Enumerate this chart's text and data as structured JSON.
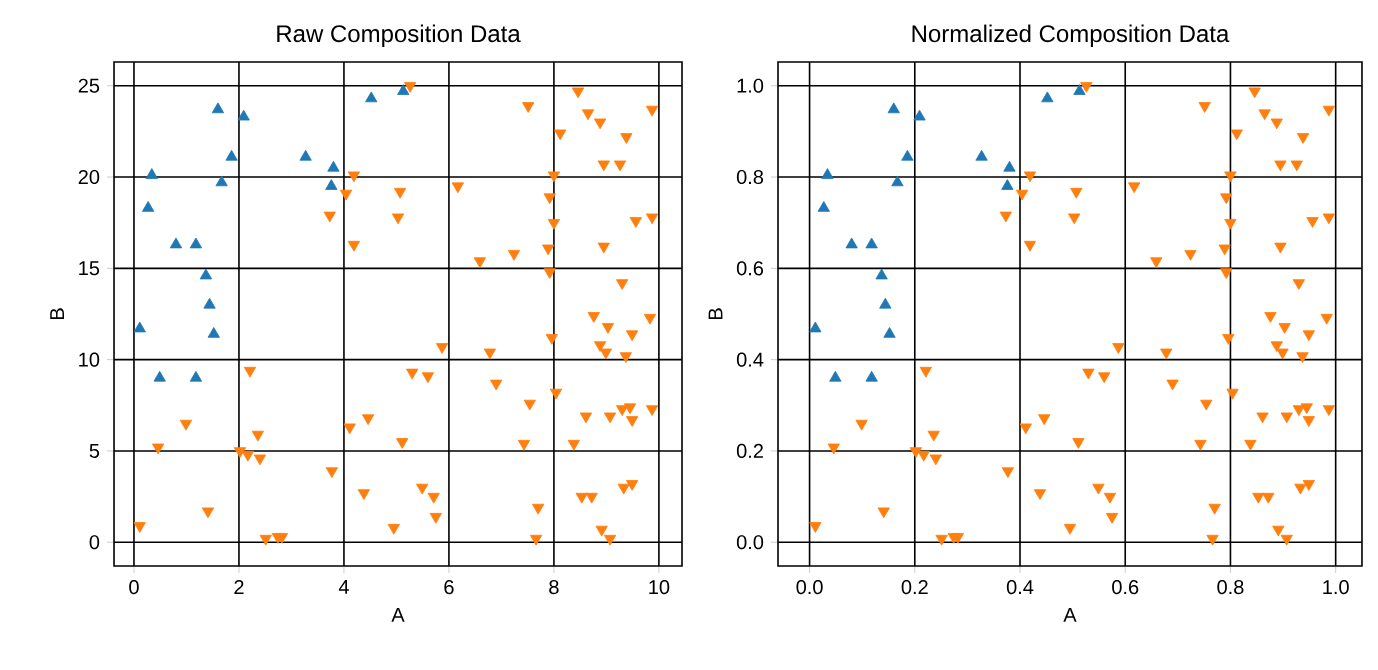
{
  "chart_data": [
    {
      "type": "scatter",
      "title": "Raw Composition Data",
      "xlabel": "A",
      "ylabel": "B",
      "xlim": [
        -0.38,
        10.44
      ],
      "ylim": [
        -1.3,
        26.3
      ],
      "xticks": [
        0,
        2,
        4,
        6,
        8,
        10
      ],
      "yticks": [
        0,
        5,
        10,
        15,
        20,
        25
      ],
      "grid": true,
      "series": [
        {
          "color": "#1f77b4",
          "marker": "triangle",
          "x": [
            1.6,
            2.09,
            4.52,
            1.86,
            3.27,
            3.8,
            0.34,
            1.67,
            3.76,
            0.27,
            0.8,
            1.18,
            1.37,
            1.44,
            0.11,
            1.52,
            0.49,
            1.18,
            5.13
          ],
          "values": [
            23.7,
            23.3,
            24.3,
            21.1,
            21.1,
            20.5,
            20.1,
            19.7,
            19.5,
            18.3,
            16.3,
            16.3,
            14.6,
            13.0,
            11.7,
            11.4,
            9.0,
            9.0,
            24.7
          ]
        },
        {
          "color": "#ff7f0e",
          "marker": "triangle_down",
          "x": [
            4.19,
            4.04,
            3.73,
            4.19,
            2.21,
            0.99,
            4.46,
            4.11,
            0.46,
            2.36,
            2.02,
            2.17,
            2.4,
            3.77,
            4.38,
            1.41,
            0.11,
            2.51,
            2.74,
            2.82,
            5.26,
            8.46,
            7.51,
            9.87,
            8.65,
            8.88,
            8.12,
            9.38,
            8.95,
            9.26,
            8.0,
            5.07,
            6.17,
            7.92,
            5.03,
            8.0,
            9.56,
            9.87,
            7.89,
            8.95,
            6.59,
            7.24,
            7.92,
            9.3,
            8.76,
            9.03,
            9.83,
            9.49,
            7.96,
            5.87,
            6.78,
            8.88,
            8.99,
            9.37,
            5.3,
            5.6,
            6.9,
            8.04,
            7.54,
            8.61,
            9.07,
            9.3,
            9.45,
            9.49,
            9.87,
            5.11,
            7.43,
            8.38,
            5.49,
            5.71,
            5.75,
            4.95,
            7.7,
            7.66,
            8.53,
            8.72,
            9.33,
            9.49,
            8.91,
            9.07
          ],
          "values": [
            20.1,
            19.1,
            17.9,
            16.3,
            9.4,
            6.5,
            6.8,
            6.3,
            5.2,
            5.9,
            5.0,
            4.8,
            4.6,
            3.9,
            2.7,
            1.7,
            0.9,
            0.2,
            0.3,
            0.3,
            25.0,
            24.7,
            23.9,
            23.7,
            23.5,
            23.0,
            22.4,
            22.2,
            20.7,
            20.7,
            20.1,
            19.2,
            19.5,
            18.9,
            17.8,
            17.5,
            17.6,
            17.8,
            16.1,
            16.2,
            15.4,
            15.8,
            14.8,
            14.2,
            12.4,
            11.8,
            12.3,
            11.4,
            11.2,
            10.7,
            10.4,
            10.8,
            10.4,
            10.2,
            9.3,
            9.1,
            8.7,
            8.2,
            7.6,
            6.9,
            6.9,
            7.3,
            7.4,
            6.7,
            7.3,
            5.5,
            5.4,
            5.4,
            3.0,
            2.5,
            1.4,
            0.8,
            1.9,
            0.2,
            2.5,
            2.5,
            3.0,
            3.2,
            0.7,
            0.2
          ]
        }
      ]
    },
    {
      "type": "scatter",
      "title": "Normalized Composition Data",
      "xlabel": "A",
      "ylabel": "B",
      "xlim": [
        -0.06,
        1.05
      ],
      "ylim": [
        -0.052,
        1.052
      ],
      "xticks": [
        {
          "value": 0,
          "label": "0.0"
        },
        {
          "value": 0.2,
          "label": "0.2"
        },
        {
          "value": 0.4,
          "label": "0.4"
        },
        {
          "value": 0.6,
          "label": "0.6"
        },
        {
          "value": 0.8,
          "label": "0.8"
        },
        {
          "value": 1,
          "label": "1.0"
        }
      ],
      "yticks": [
        {
          "value": 0,
          "label": "0.0"
        },
        {
          "value": 0.2,
          "label": "0.2"
        },
        {
          "value": 0.4,
          "label": "0.4"
        },
        {
          "value": 0.6,
          "label": "0.6"
        },
        {
          "value": 0.8,
          "label": "0.8"
        },
        {
          "value": 1,
          "label": "1.0"
        }
      ],
      "grid": true,
      "series": [
        {
          "color": "#1f77b4",
          "marker": "triangle",
          "x": [
            0.16,
            0.209,
            0.452,
            0.186,
            0.327,
            0.38,
            0.034,
            0.167,
            0.376,
            0.027,
            0.08,
            0.118,
            0.137,
            0.144,
            0.011,
            0.152,
            0.049,
            0.118,
            0.513
          ],
          "values": [
            0.948,
            0.932,
            0.972,
            0.844,
            0.844,
            0.82,
            0.804,
            0.788,
            0.78,
            0.732,
            0.652,
            0.652,
            0.584,
            0.52,
            0.468,
            0.456,
            0.36,
            0.36,
            0.988
          ]
        },
        {
          "color": "#ff7f0e",
          "marker": "triangle_down",
          "x": [
            0.419,
            0.404,
            0.373,
            0.419,
            0.221,
            0.099,
            0.446,
            0.411,
            0.046,
            0.236,
            0.202,
            0.217,
            0.24,
            0.377,
            0.438,
            0.141,
            0.011,
            0.251,
            0.274,
            0.282,
            0.526,
            0.846,
            0.751,
            0.987,
            0.865,
            0.888,
            0.812,
            0.938,
            0.895,
            0.926,
            0.8,
            0.507,
            0.617,
            0.792,
            0.503,
            0.8,
            0.956,
            0.987,
            0.789,
            0.895,
            0.659,
            0.724,
            0.792,
            0.93,
            0.876,
            0.903,
            0.983,
            0.949,
            0.796,
            0.587,
            0.678,
            0.888,
            0.899,
            0.937,
            0.53,
            0.56,
            0.69,
            0.804,
            0.754,
            0.861,
            0.907,
            0.93,
            0.945,
            0.949,
            0.987,
            0.511,
            0.743,
            0.838,
            0.549,
            0.571,
            0.575,
            0.495,
            0.77,
            0.766,
            0.853,
            0.872,
            0.933,
            0.949,
            0.891,
            0.907
          ],
          "values": [
            0.804,
            0.764,
            0.716,
            0.652,
            0.376,
            0.26,
            0.272,
            0.252,
            0.208,
            0.236,
            0.2,
            0.192,
            0.184,
            0.156,
            0.108,
            0.068,
            0.036,
            0.008,
            0.012,
            0.012,
            1.0,
            0.988,
            0.956,
            0.948,
            0.94,
            0.92,
            0.896,
            0.888,
            0.828,
            0.828,
            0.804,
            0.768,
            0.78,
            0.756,
            0.712,
            0.7,
            0.704,
            0.712,
            0.644,
            0.648,
            0.616,
            0.632,
            0.592,
            0.568,
            0.496,
            0.472,
            0.492,
            0.456,
            0.448,
            0.428,
            0.416,
            0.432,
            0.416,
            0.408,
            0.372,
            0.364,
            0.348,
            0.328,
            0.304,
            0.276,
            0.276,
            0.292,
            0.296,
            0.268,
            0.292,
            0.22,
            0.216,
            0.216,
            0.12,
            0.1,
            0.056,
            0.032,
            0.076,
            0.008,
            0.1,
            0.1,
            0.12,
            0.128,
            0.028,
            0.008
          ]
        }
      ]
    }
  ]
}
